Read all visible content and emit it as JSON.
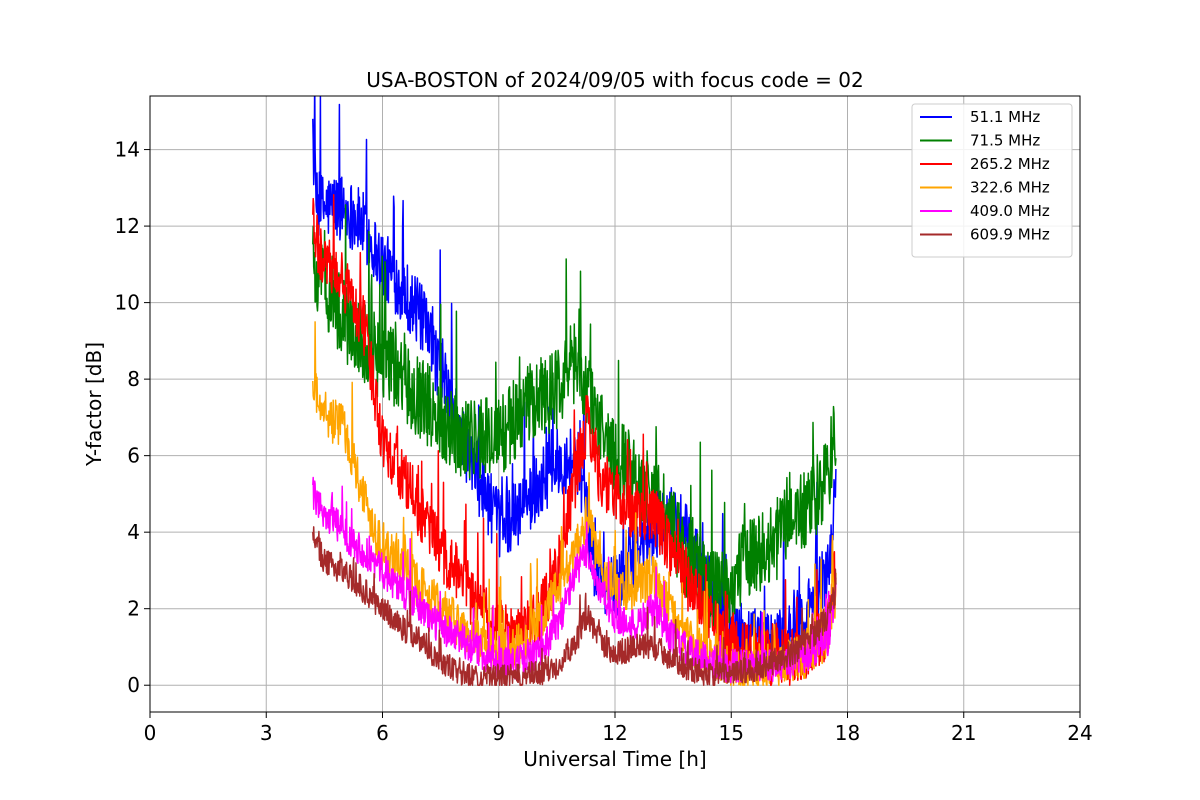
{
  "chart_data": {
    "type": "line",
    "title": "USA-BOSTON of 2024/09/05 with focus code = 02",
    "xlabel": "Universal Time [h]",
    "ylabel": "Y-factor [dB]",
    "xlim": [
      0,
      24
    ],
    "ylim": [
      -0.7,
      15.4
    ],
    "xticks": [
      0,
      3,
      6,
      9,
      12,
      15,
      18,
      21,
      24
    ],
    "yticks": [
      0,
      2,
      4,
      6,
      8,
      10,
      12,
      14
    ],
    "grid": true,
    "legend_position": "top-right",
    "series": [
      {
        "name": " 51.1 MHz",
        "color": "#0000ff",
        "noise": 0.9,
        "x": [
          4.2,
          4.3,
          4.5,
          5.0,
          5.5,
          6.0,
          6.5,
          7.0,
          7.5,
          8.0,
          8.5,
          9.0,
          9.5,
          10.0,
          10.5,
          11.0,
          11.2,
          11.5,
          12.0,
          12.5,
          13.0,
          13.5,
          14.0,
          14.5,
          15.0,
          15.5,
          16.0,
          16.5,
          17.0,
          17.5,
          17.7
        ],
        "y": [
          14.2,
          12.5,
          12.5,
          12.5,
          12.0,
          11.0,
          10.4,
          9.6,
          8.2,
          6.6,
          5.3,
          4.2,
          4.5,
          5.2,
          5.8,
          6.0,
          5.0,
          3.0,
          2.5,
          3.5,
          4.0,
          4.5,
          3.5,
          2.5,
          1.5,
          1.2,
          1.0,
          1.5,
          2.0,
          3.0,
          5.0
        ]
      },
      {
        "name": " 71.5 MHz",
        "color": "#008000",
        "noise": 1.1,
        "x": [
          4.2,
          4.5,
          5.0,
          5.5,
          6.0,
          6.5,
          7.0,
          7.5,
          8.0,
          8.5,
          9.0,
          9.5,
          10.0,
          10.5,
          11.0,
          11.5,
          12.0,
          12.5,
          13.0,
          13.5,
          14.0,
          14.5,
          15.0,
          15.5,
          16.0,
          16.5,
          17.0,
          17.5,
          17.7
        ],
        "y": [
          11.0,
          10.5,
          9.5,
          9.0,
          8.5,
          8.0,
          7.5,
          7.0,
          6.5,
          6.5,
          6.5,
          7.0,
          7.5,
          7.8,
          8.5,
          7.0,
          6.0,
          5.5,
          5.0,
          4.0,
          3.0,
          2.5,
          2.5,
          3.5,
          3.5,
          4.5,
          4.5,
          5.5,
          6.5
        ]
      },
      {
        "name": "265.2 MHz",
        "color": "#ff0000",
        "noise": 0.8,
        "x": [
          4.2,
          4.5,
          5.0,
          5.5,
          6.0,
          6.5,
          7.0,
          7.5,
          8.0,
          8.5,
          9.0,
          9.5,
          10.0,
          10.5,
          11.0,
          11.3,
          11.6,
          12.0,
          12.5,
          13.0,
          13.5,
          14.0,
          14.5,
          15.0,
          15.5,
          16.0,
          16.5,
          17.0,
          17.5,
          17.7
        ],
        "y": [
          12.0,
          11.0,
          10.5,
          9.5,
          6.5,
          5.5,
          4.5,
          3.5,
          2.8,
          2.0,
          1.5,
          1.3,
          1.8,
          3.0,
          5.5,
          7.0,
          5.5,
          5.0,
          4.5,
          4.5,
          3.5,
          2.5,
          1.5,
          1.0,
          0.8,
          0.7,
          0.7,
          1.0,
          1.5,
          3.0
        ]
      },
      {
        "name": "322.6 MHz",
        "color": "#ffa500",
        "noise": 0.6,
        "x": [
          4.2,
          4.5,
          5.0,
          5.5,
          6.0,
          6.5,
          7.0,
          7.5,
          8.0,
          8.5,
          9.0,
          9.5,
          10.0,
          10.5,
          11.0,
          11.3,
          11.6,
          12.0,
          12.5,
          13.0,
          13.5,
          14.0,
          14.5,
          15.0,
          15.5,
          16.0,
          16.5,
          17.0,
          17.5,
          17.7
        ],
        "y": [
          8.0,
          7.0,
          6.8,
          5.0,
          3.5,
          3.2,
          2.5,
          2.0,
          1.5,
          1.1,
          0.8,
          1.0,
          1.5,
          2.5,
          3.5,
          4.5,
          3.0,
          2.5,
          2.5,
          2.8,
          1.8,
          1.0,
          0.8,
          0.5,
          0.5,
          0.5,
          0.6,
          0.8,
          1.2,
          2.5
        ]
      },
      {
        "name": "409.0 MHz",
        "color": "#ff00ff",
        "noise": 0.45,
        "x": [
          4.2,
          4.5,
          5.0,
          5.5,
          6.0,
          6.5,
          7.0,
          7.5,
          8.0,
          8.5,
          9.0,
          9.5,
          10.0,
          10.5,
          11.0,
          11.3,
          11.6,
          12.0,
          12.5,
          13.0,
          13.5,
          14.0,
          14.5,
          15.0,
          15.5,
          16.0,
          16.5,
          17.0,
          17.5,
          17.7
        ],
        "y": [
          5.0,
          4.5,
          4.0,
          3.5,
          3.0,
          2.5,
          2.0,
          1.5,
          1.2,
          0.9,
          0.6,
          0.6,
          0.8,
          1.5,
          3.0,
          3.5,
          2.5,
          1.8,
          1.5,
          2.0,
          1.2,
          0.8,
          0.6,
          0.5,
          0.5,
          0.5,
          0.6,
          0.8,
          1.2,
          2.5
        ]
      },
      {
        "name": "609.9 MHz",
        "color": "#a52a2a",
        "noise": 0.35,
        "x": [
          4.2,
          4.5,
          5.0,
          5.5,
          6.0,
          6.5,
          7.0,
          7.5,
          8.0,
          8.5,
          9.0,
          9.5,
          10.0,
          10.5,
          11.0,
          11.3,
          11.6,
          12.0,
          12.5,
          13.0,
          13.5,
          14.0,
          14.5,
          15.0,
          15.5,
          16.0,
          16.5,
          17.0,
          17.5,
          17.7
        ],
        "y": [
          4.0,
          3.2,
          3.0,
          2.5,
          2.0,
          1.5,
          1.2,
          0.6,
          0.3,
          0.2,
          0.2,
          0.2,
          0.3,
          0.5,
          1.2,
          1.8,
          1.2,
          0.8,
          1.0,
          1.0,
          0.7,
          0.4,
          0.3,
          0.3,
          0.4,
          0.6,
          0.8,
          1.2,
          1.8,
          2.5
        ]
      }
    ]
  }
}
